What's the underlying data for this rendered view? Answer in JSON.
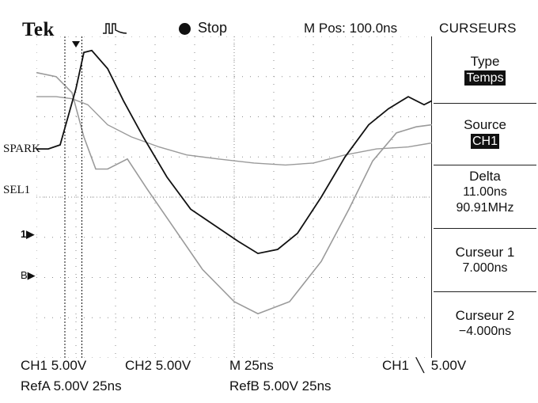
{
  "header": {
    "brand": "Tek",
    "run_state": "Stop",
    "position": "M Pos: 100.0ns",
    "menu_title": "CURSEURS",
    "trigger_icon": "trigger-edge-icon"
  },
  "side_menu": {
    "type_label": "Type",
    "type_value": "Temps",
    "source_label": "Source",
    "source_value": "CH1",
    "delta_label": "Delta",
    "delta_time": "11.00ns",
    "delta_freq": "90.91MHz",
    "cursor1_label": "Curseur 1",
    "cursor1_value": "7.000ns",
    "cursor2_label": "Curseur 2",
    "cursor2_value": "−4.000ns"
  },
  "channel_labels": {
    "spark": "SPARK",
    "sel1": "SEL1",
    "ch1_marker": "1",
    "ref_b_marker": "B"
  },
  "status": {
    "ch1_scale": "CH1 5.00V",
    "ch2_scale": "CH2 5.00V",
    "timebase": "M 25ns",
    "trigger": "CH1",
    "trigger_level": "5.00V",
    "refa": "RefA 5.00V 25ns",
    "refb": "RefB 5.00V 25ns"
  },
  "colors": {
    "trace_main": "#111111",
    "trace_ref": "#9a9a9a",
    "grid": "#8a8a8a"
  },
  "waveforms": {
    "x_unit": "div",
    "y_unit": "div",
    "ch1_trace": [
      [
        0,
        1.2
      ],
      [
        0.3,
        1.2
      ],
      [
        0.6,
        1.3
      ],
      [
        0.8,
        2.0
      ],
      [
        1.0,
        2.7
      ],
      [
        1.2,
        3.6
      ],
      [
        1.4,
        3.65
      ],
      [
        1.8,
        3.2
      ],
      [
        2.2,
        2.4
      ],
      [
        2.7,
        1.5
      ],
      [
        3.3,
        0.5
      ],
      [
        3.9,
        -0.3
      ],
      [
        4.5,
        -0.7
      ],
      [
        5.1,
        -1.1
      ],
      [
        5.6,
        -1.4
      ],
      [
        6.1,
        -1.3
      ],
      [
        6.6,
        -0.9
      ],
      [
        7.2,
        0
      ],
      [
        7.8,
        1.0
      ],
      [
        8.4,
        1.8
      ],
      [
        8.9,
        2.2
      ],
      [
        9.4,
        2.5
      ],
      [
        9.8,
        2.3
      ],
      [
        10,
        2.4
      ]
    ],
    "ref_a_trace": [
      [
        0,
        2.5
      ],
      [
        0.5,
        2.5
      ],
      [
        0.9,
        2.45
      ],
      [
        1.3,
        2.3
      ],
      [
        1.8,
        1.8
      ],
      [
        2.4,
        1.5
      ],
      [
        3.1,
        1.25
      ],
      [
        3.8,
        1.05
      ],
      [
        4.6,
        0.95
      ],
      [
        5.5,
        0.85
      ],
      [
        6.3,
        0.8
      ],
      [
        7.0,
        0.85
      ],
      [
        7.8,
        1.05
      ],
      [
        8.6,
        1.2
      ],
      [
        9.4,
        1.25
      ],
      [
        10,
        1.35
      ]
    ],
    "ref_b_trace": [
      [
        0,
        3.1
      ],
      [
        0.5,
        3.0
      ],
      [
        0.9,
        2.6
      ],
      [
        1.2,
        1.5
      ],
      [
        1.5,
        0.7
      ],
      [
        1.8,
        0.7
      ],
      [
        2.3,
        0.95
      ],
      [
        2.8,
        0.2
      ],
      [
        3.5,
        -0.8
      ],
      [
        4.2,
        -1.8
      ],
      [
        5.0,
        -2.6
      ],
      [
        5.6,
        -2.9
      ],
      [
        6.4,
        -2.6
      ],
      [
        7.2,
        -1.6
      ],
      [
        7.9,
        -0.3
      ],
      [
        8.5,
        0.9
      ],
      [
        9.1,
        1.6
      ],
      [
        9.6,
        1.75
      ],
      [
        10,
        1.8
      ]
    ],
    "cursor1": 1.15,
    "cursor2": 0.72
  }
}
